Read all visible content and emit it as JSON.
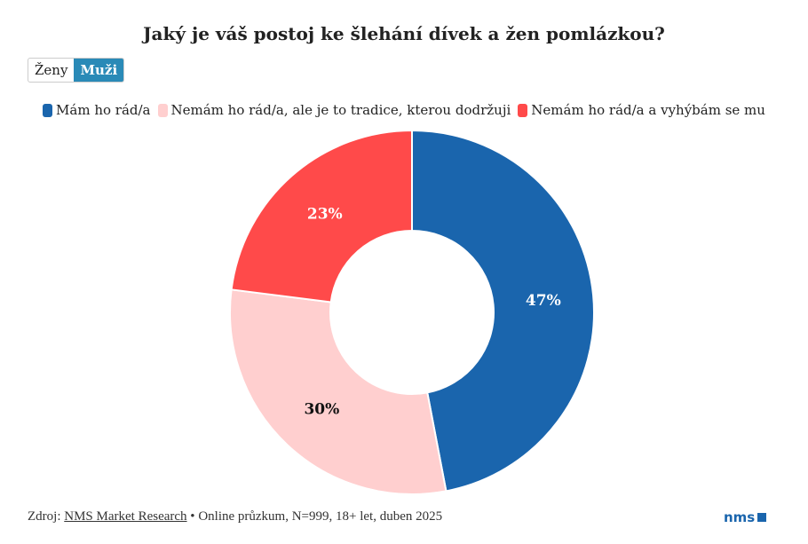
{
  "title": "Jaký je váš postoj ke šlehání dívek a žen pomlázkou?",
  "toggle": {
    "options": [
      "Ženy",
      "Muži"
    ],
    "selected": "Muži"
  },
  "chart_data": {
    "type": "pie",
    "donut": true,
    "title": "Jaký je váš postoj ke šlehání dívek a žen pomlázkou?",
    "legend_position": "top",
    "slices": [
      {
        "name": "Mám ho rád/a",
        "value": 47,
        "label": "47%",
        "color": "#1a65ad",
        "label_color": "#ffffff"
      },
      {
        "name": "Nemám ho rád/a, ale je to tradice, kterou dodržuji",
        "value": 30,
        "label": "30%",
        "color": "#ffcfcf",
        "label_color": "#111111"
      },
      {
        "name": "Nemám ho rád/a a vyhýbám se mu",
        "value": 23,
        "label": "23%",
        "color": "#ff4a4a",
        "label_color": "#ffffff"
      }
    ]
  },
  "footer": {
    "prefix": "Zdroj: ",
    "link": "NMS Market Research",
    "separator": " • ",
    "text": "Online průzkum, N=999, 18+ let, duben 2025"
  },
  "logo": "nms"
}
